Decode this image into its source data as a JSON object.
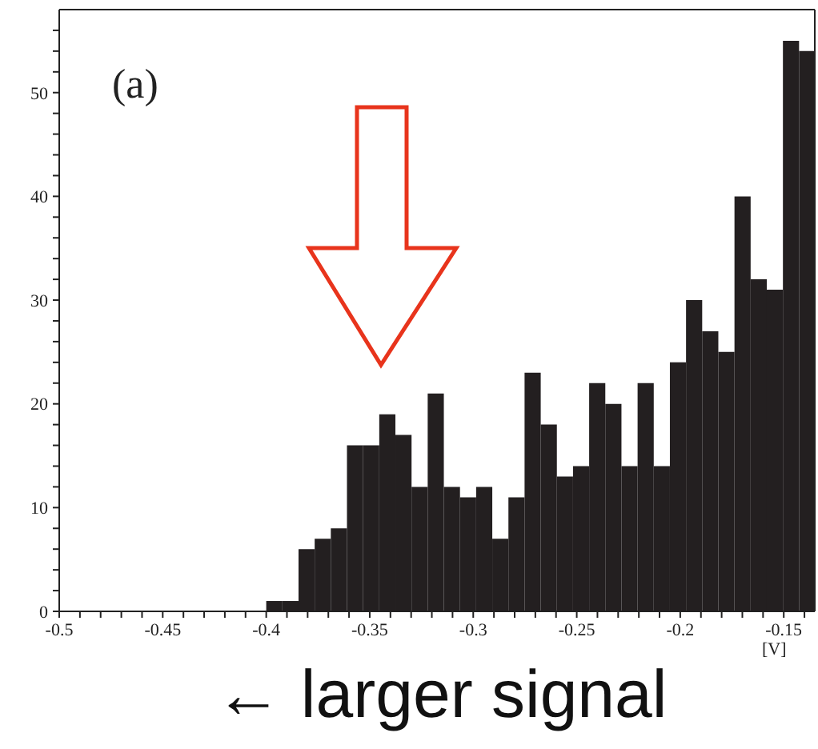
{
  "chart_data": {
    "type": "histogram",
    "bins": [
      -0.4,
      -0.3922,
      -0.3844,
      -0.3766,
      -0.3688,
      -0.361,
      -0.3532,
      -0.3454,
      -0.3376,
      -0.3298,
      -0.322,
      -0.3142,
      -0.3064,
      -0.2986,
      -0.2908,
      -0.283,
      -0.2752,
      -0.2674,
      -0.2596,
      -0.2518,
      -0.244,
      -0.2362,
      -0.2284,
      -0.2206,
      -0.2128,
      -0.205,
      -0.1972,
      -0.1894,
      -0.1816,
      -0.1738,
      -0.166,
      -0.1582,
      -0.1504,
      -0.1426,
      -0.135
    ],
    "values": [
      1,
      1,
      6,
      7,
      8,
      16,
      16,
      19,
      17,
      12,
      21,
      12,
      11,
      12,
      7,
      11,
      23,
      18,
      13,
      14,
      22,
      20,
      14,
      22,
      14,
      24,
      30,
      27,
      25,
      40,
      32,
      31,
      55,
      54
    ],
    "color": "#231f20",
    "xlabel": "[V]",
    "xlim": [
      -0.5,
      -0.135
    ],
    "xticks": [
      -0.5,
      {
        "value": -0.49,
        "label": null
      },
      {
        "value": -0.48,
        "label": null
      },
      {
        "value": -0.47,
        "label": null
      },
      {
        "value": -0.46,
        "label": null
      },
      -0.45,
      {
        "value": -0.44,
        "label": null
      },
      {
        "value": -0.43,
        "label": null
      },
      {
        "value": -0.42,
        "label": null
      },
      {
        "value": -0.41,
        "label": null
      },
      -0.4,
      {
        "value": -0.39,
        "label": null
      },
      {
        "value": -0.38,
        "label": null
      },
      {
        "value": -0.37,
        "label": null
      },
      {
        "value": -0.36,
        "label": null
      },
      -0.35,
      {
        "value": -0.34,
        "label": null
      },
      {
        "value": -0.33,
        "label": null
      },
      {
        "value": -0.32,
        "label": null
      },
      {
        "value": -0.31,
        "label": null
      },
      -0.3,
      {
        "value": -0.29,
        "label": null
      },
      {
        "value": -0.28,
        "label": null
      },
      {
        "value": -0.27,
        "label": null
      },
      {
        "value": -0.26,
        "label": null
      },
      -0.25,
      {
        "value": -0.24,
        "label": null
      },
      {
        "value": -0.23,
        "label": null
      },
      {
        "value": -0.22,
        "label": null
      },
      {
        "value": -0.21,
        "label": null
      },
      -0.2,
      {
        "value": -0.19,
        "label": null
      },
      {
        "value": -0.18,
        "label": null
      },
      {
        "value": -0.17,
        "label": null
      },
      {
        "value": -0.16,
        "label": null
      },
      -0.15,
      {
        "value": -0.14,
        "label": null
      }
    ],
    "ylim": [
      0,
      58
    ],
    "yticks": [
      0,
      {
        "value": 2,
        "label": null
      },
      {
        "value": 4,
        "label": null
      },
      {
        "value": 6,
        "label": null
      },
      {
        "value": 8,
        "label": null
      },
      10,
      {
        "value": 12,
        "label": null
      },
      {
        "value": 14,
        "label": null
      },
      {
        "value": 16,
        "label": null
      },
      {
        "value": 18,
        "label": null
      },
      20,
      {
        "value": 22,
        "label": null
      },
      {
        "value": 24,
        "label": null
      },
      {
        "value": 26,
        "label": null
      },
      {
        "value": 28,
        "label": null
      },
      30,
      {
        "value": 32,
        "label": null
      },
      {
        "value": 34,
        "label": null
      },
      {
        "value": 36,
        "label": null
      },
      {
        "value": 38,
        "label": null
      },
      40,
      {
        "value": 42,
        "label": null
      },
      {
        "value": 44,
        "label": null
      },
      {
        "value": 46,
        "label": null
      },
      {
        "value": 48,
        "label": null
      },
      50,
      {
        "value": 52,
        "label": null
      },
      {
        "value": 54,
        "label": null
      },
      {
        "value": 56,
        "label": null
      }
    ],
    "annotations": [
      "(a)",
      "← larger signal"
    ],
    "grid": false
  }
}
